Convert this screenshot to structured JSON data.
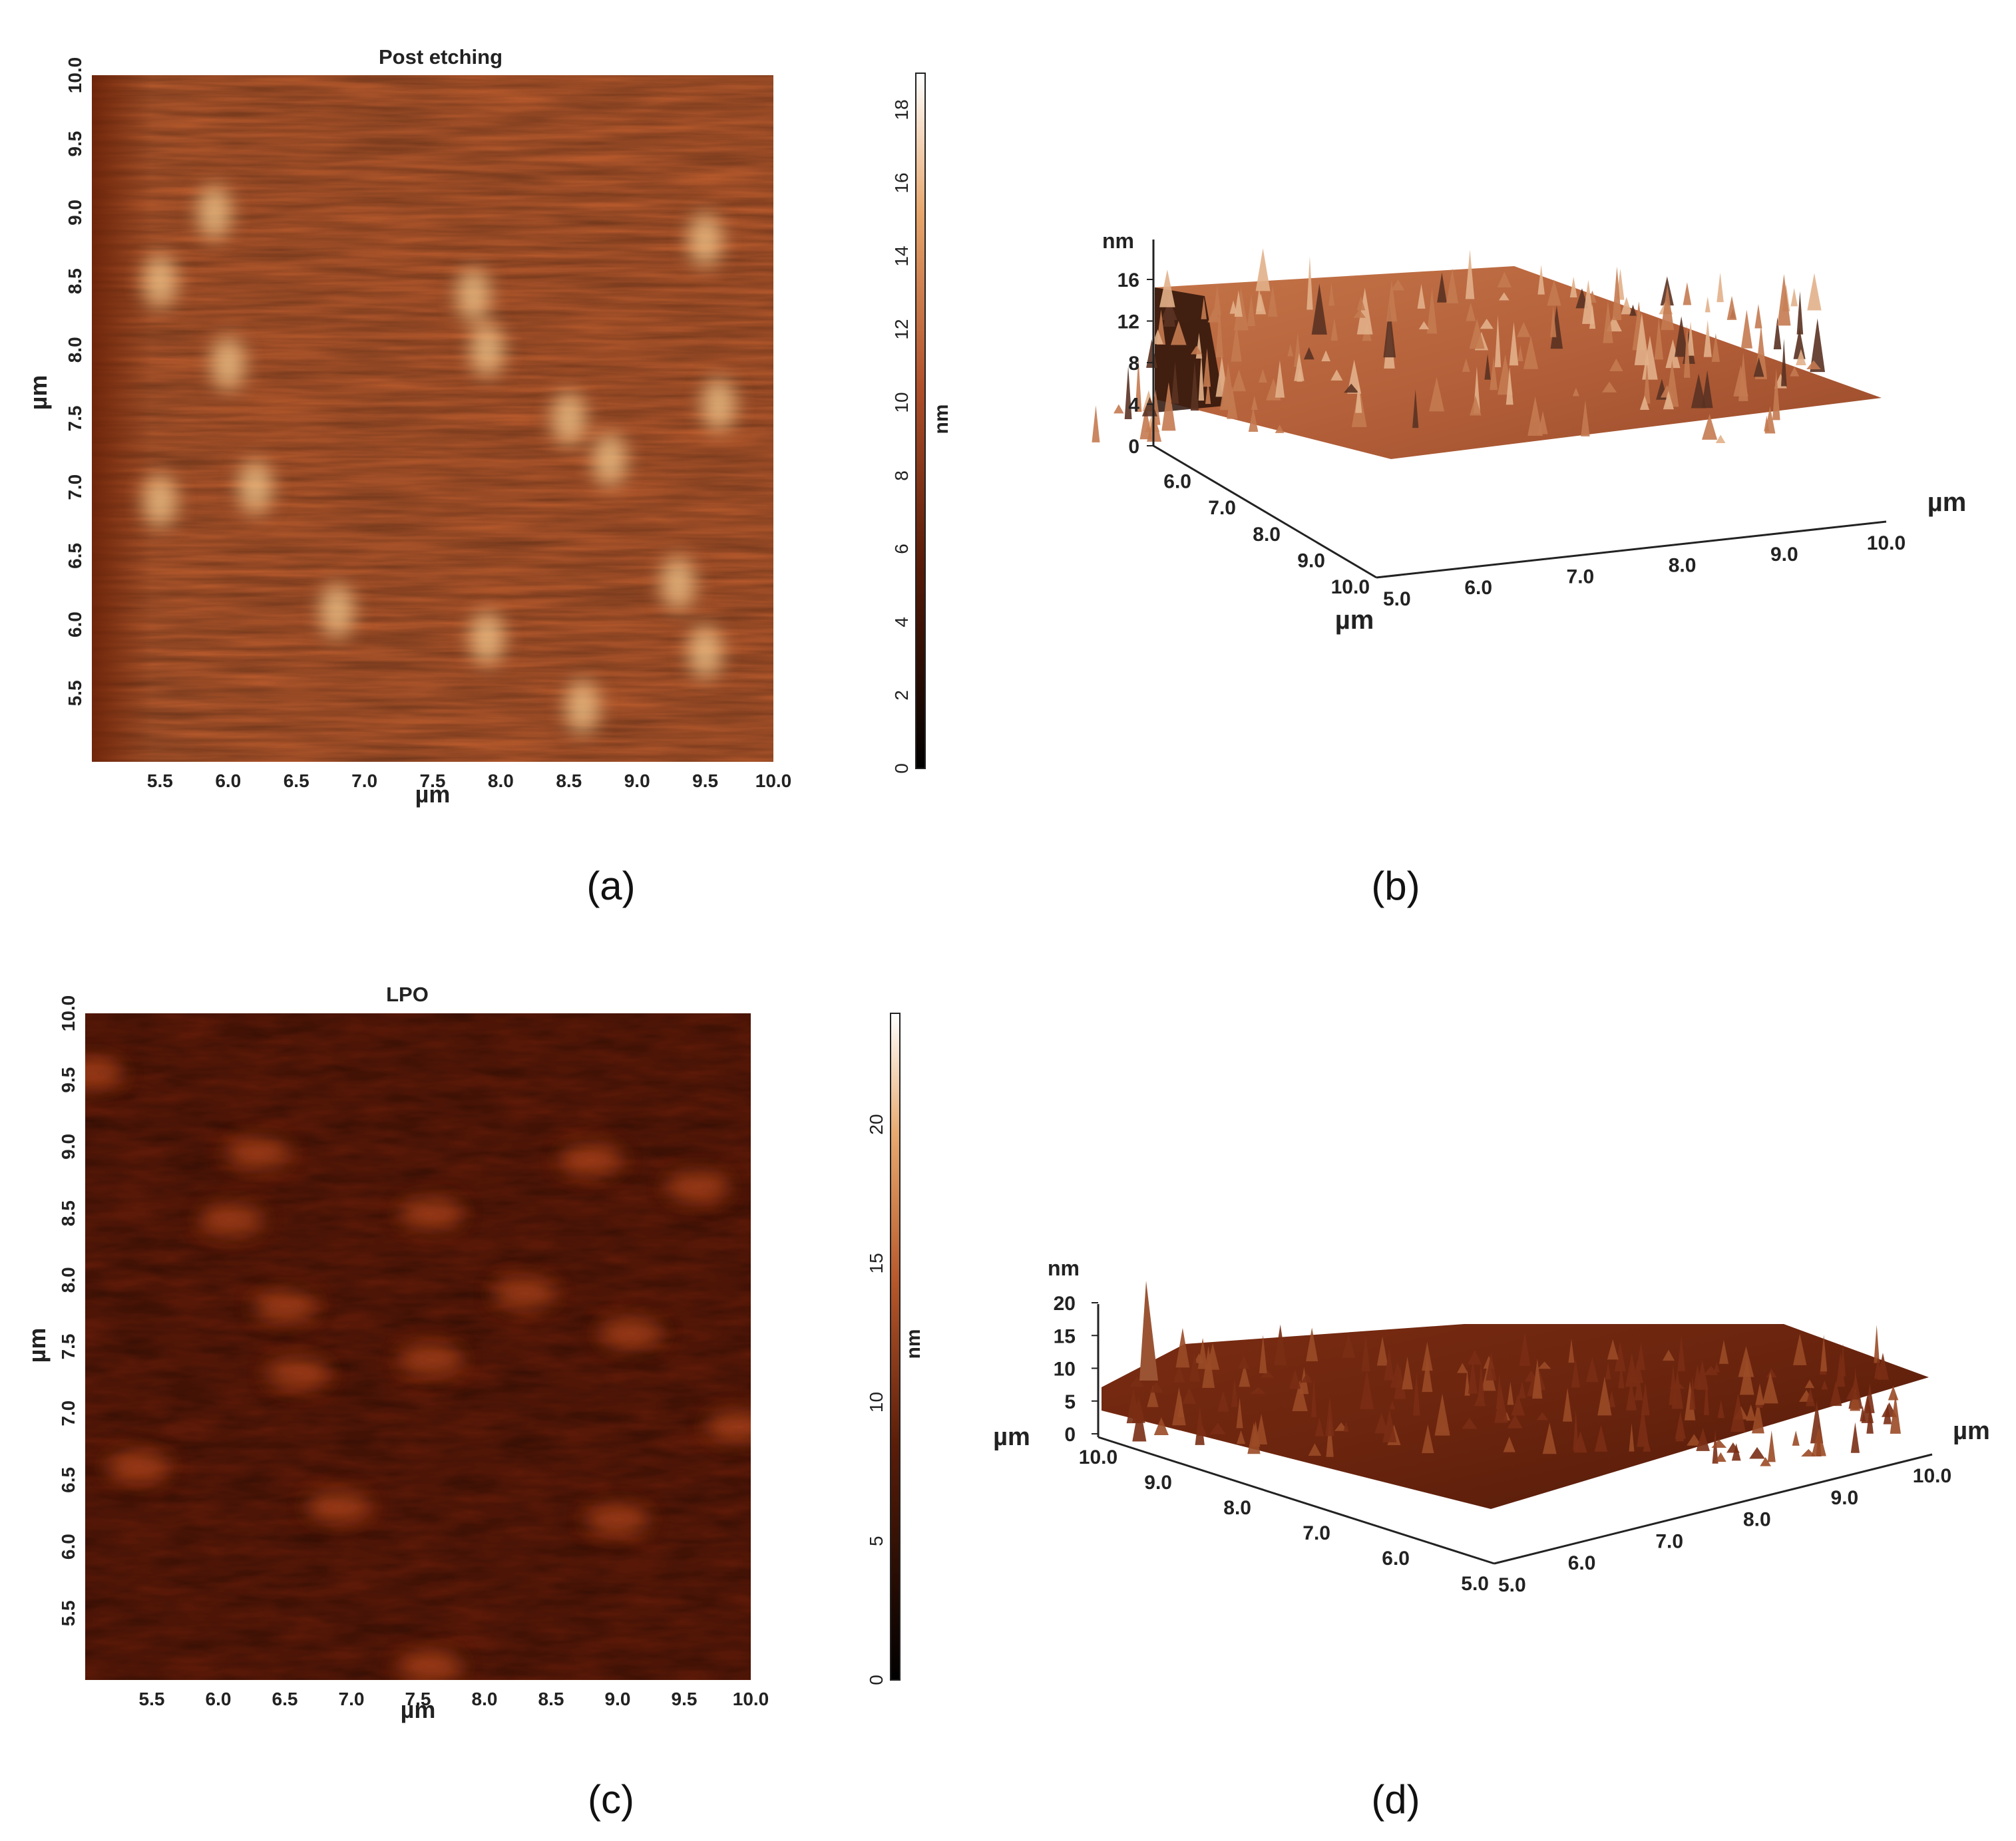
{
  "chart_data": [
    {
      "type": "heatmap",
      "panel_label": "(a)",
      "title": "Post etching",
      "xlabel": "µm",
      "ylabel": "µm",
      "x_ticks": [
        "5.5",
        "6.0",
        "6.5",
        "7.0",
        "7.5",
        "8.0",
        "8.5",
        "9.0",
        "9.5",
        "10.0"
      ],
      "y_ticks": [
        "5.5",
        "6.0",
        "6.5",
        "7.0",
        "7.5",
        "8.0",
        "8.5",
        "9.0",
        "9.5",
        "10.0"
      ],
      "xlim": [
        5.0,
        10.0
      ],
      "ylim": [
        5.0,
        10.0
      ],
      "colorbar": {
        "label": "nm",
        "ticks": [
          "0",
          "2",
          "4",
          "6",
          "8",
          "10",
          "12",
          "14",
          "16",
          "18"
        ],
        "range": [
          0,
          19
        ]
      },
      "colors": {
        "base": "#b4582c",
        "dark": "#7a2c10",
        "light": "#f2c88e"
      },
      "bright_features": [
        {
          "x": 5.9,
          "y": 9.0
        },
        {
          "x": 6.2,
          "y": 7.0
        },
        {
          "x": 5.5,
          "y": 6.9
        },
        {
          "x": 6.8,
          "y": 6.1
        },
        {
          "x": 7.9,
          "y": 8.0
        },
        {
          "x": 7.8,
          "y": 8.4
        },
        {
          "x": 8.5,
          "y": 7.5
        },
        {
          "x": 9.5,
          "y": 8.8
        },
        {
          "x": 9.6,
          "y": 7.6
        },
        {
          "x": 9.5,
          "y": 5.8
        },
        {
          "x": 8.6,
          "y": 5.4
        },
        {
          "x": 7.9,
          "y": 5.9
        },
        {
          "x": 5.5,
          "y": 8.5
        },
        {
          "x": 6.0,
          "y": 7.9
        },
        {
          "x": 8.8,
          "y": 7.2
        },
        {
          "x": 9.3,
          "y": 6.3
        }
      ]
    },
    {
      "type": "surface",
      "panel_label": "(b)",
      "zlabel": "nm",
      "z_ticks": [
        "0",
        "4",
        "8",
        "12",
        "16"
      ],
      "zlim": [
        0,
        17
      ],
      "x_ticks": [
        "5.0",
        "6.0",
        "7.0",
        "8.0",
        "9.0",
        "10.0"
      ],
      "y_ticks": [
        "6.0",
        "7.0",
        "8.0",
        "9.0",
        "10.0"
      ],
      "xlabel": "µm",
      "ylabel": "µm",
      "colors": {
        "base": "#c06a3c",
        "dark": "#3a1a0c",
        "light": "#e9b38a"
      }
    },
    {
      "type": "heatmap",
      "panel_label": "(c)",
      "title": "LPO",
      "xlabel": "µm",
      "ylabel": "µm",
      "x_ticks": [
        "5.5",
        "6.0",
        "6.5",
        "7.0",
        "7.5",
        "8.0",
        "8.5",
        "9.0",
        "9.5",
        "10.0"
      ],
      "y_ticks": [
        "5.5",
        "6.0",
        "6.5",
        "7.0",
        "7.5",
        "8.0",
        "8.5",
        "9.0",
        "9.5",
        "10.0"
      ],
      "xlim": [
        5.0,
        10.0
      ],
      "ylim": [
        5.0,
        10.0
      ],
      "colorbar": {
        "label": "nm",
        "ticks": [
          "0",
          "5",
          "10",
          "15",
          "20"
        ],
        "range": [
          0,
          24
        ]
      },
      "colors": {
        "base": "#5e1a08",
        "dark": "#2e0a02",
        "light": "#b4461c"
      },
      "bright_features": [
        {
          "x": 5.05,
          "y": 9.55
        },
        {
          "x": 6.3,
          "y": 8.95
        },
        {
          "x": 6.1,
          "y": 8.45
        },
        {
          "x": 6.5,
          "y": 7.8
        },
        {
          "x": 6.6,
          "y": 7.3
        },
        {
          "x": 7.6,
          "y": 7.4
        },
        {
          "x": 8.3,
          "y": 7.9
        },
        {
          "x": 9.1,
          "y": 7.6
        },
        {
          "x": 9.6,
          "y": 8.7
        },
        {
          "x": 5.4,
          "y": 6.6
        },
        {
          "x": 9.9,
          "y": 6.9
        },
        {
          "x": 9.0,
          "y": 6.2
        },
        {
          "x": 6.9,
          "y": 6.3
        },
        {
          "x": 7.6,
          "y": 8.5
        },
        {
          "x": 8.8,
          "y": 8.9
        },
        {
          "x": 7.6,
          "y": 5.1
        }
      ]
    },
    {
      "type": "surface",
      "panel_label": "(d)",
      "zlabel": "nm",
      "z_ticks": [
        "0",
        "5",
        "10",
        "15",
        "20"
      ],
      "zlim": [
        0,
        24
      ],
      "left_axis_ticks": [
        "10.0",
        "9.0",
        "8.0",
        "7.0",
        "6.0",
        "5.0"
      ],
      "right_axis_ticks": [
        "5.0",
        "6.0",
        "7.0",
        "8.0",
        "9.0",
        "10.0"
      ],
      "xlabel": "µm",
      "ylabel": "µm",
      "colors": {
        "base": "#6e2810",
        "dark": "#3a1206",
        "light": "#b05a30"
      }
    }
  ]
}
